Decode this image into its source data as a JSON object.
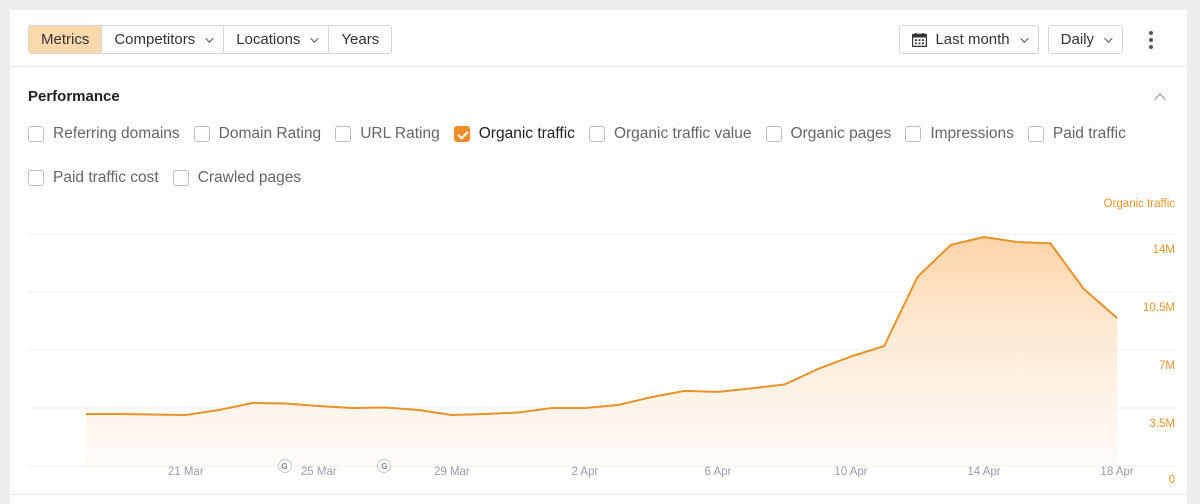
{
  "toolbar": {
    "segments": [
      {
        "label": "Metrics",
        "active": true,
        "has_dropdown": false
      },
      {
        "label": "Competitors",
        "active": false,
        "has_dropdown": true
      },
      {
        "label": "Locations",
        "active": false,
        "has_dropdown": true
      },
      {
        "label": "Years",
        "active": false,
        "has_dropdown": false
      }
    ],
    "period": {
      "icon": "calendar-icon",
      "label": "Last month"
    },
    "granularity": {
      "label": "Daily"
    },
    "more_icon": "more-vertical-icon"
  },
  "section": {
    "title": "Performance",
    "collapse_icon": "chevron-up-icon"
  },
  "metrics": [
    {
      "label": "Referring domains",
      "checked": false
    },
    {
      "label": "Domain Rating",
      "checked": false
    },
    {
      "label": "URL Rating",
      "checked": false
    },
    {
      "label": "Organic traffic",
      "checked": true
    },
    {
      "label": "Organic traffic value",
      "checked": false
    },
    {
      "label": "Organic pages",
      "checked": false
    },
    {
      "label": "Impressions",
      "checked": false
    },
    {
      "label": "Paid traffic",
      "checked": false
    },
    {
      "label": "Paid traffic cost",
      "checked": false
    },
    {
      "label": "Crawled pages",
      "checked": false
    }
  ],
  "colors": {
    "accent": "#f28c28",
    "line": "#e8922a",
    "active_segment": "#fcd9ad",
    "axis_label": "#e8932e"
  },
  "chart_data": {
    "type": "area",
    "title": "",
    "series": [
      {
        "name": "Organic traffic",
        "x": [
          "18 Mar",
          "19 Mar",
          "20 Mar",
          "21 Mar",
          "22 Mar",
          "23 Mar",
          "24 Mar",
          "25 Mar",
          "26 Mar",
          "27 Mar",
          "28 Mar",
          "29 Mar",
          "30 Mar",
          "31 Mar",
          "1 Apr",
          "2 Apr",
          "3 Apr",
          "4 Apr",
          "5 Apr",
          "6 Apr",
          "7 Apr",
          "8 Apr",
          "9 Apr",
          "10 Apr",
          "11 Apr",
          "12 Apr",
          "13 Apr",
          "14 Apr",
          "15 Apr",
          "16 Apr",
          "17 Apr",
          "18 Apr"
        ],
        "values": [
          3140000,
          3140000,
          3110000,
          3080000,
          3380000,
          3800000,
          3770000,
          3620000,
          3500000,
          3530000,
          3380000,
          3080000,
          3140000,
          3230000,
          3500000,
          3500000,
          3680000,
          4160000,
          4530000,
          4470000,
          4680000,
          4920000,
          5850000,
          6610000,
          7240000,
          11410000,
          13340000,
          13820000,
          13520000,
          13430000,
          10680000,
          8930000
        ]
      }
    ],
    "x_tick_labels": [
      "21 Mar",
      "25 Mar",
      "29 Mar",
      "2 Apr",
      "6 Apr",
      "10 Apr",
      "14 Apr",
      "18 Apr"
    ],
    "y_axis": {
      "title": "Organic traffic",
      "position": "right",
      "tick_labels": [
        "14M",
        "10.5M",
        "7M",
        "3.5M",
        "0"
      ],
      "ticks": [
        14000000,
        10500000,
        7000000,
        3500000,
        0
      ],
      "range": [
        0,
        14000000
      ]
    },
    "xlabel": "",
    "ylabel": "Organic traffic",
    "grid": true,
    "annotations": [
      {
        "type": "google-update-marker",
        "label": "G",
        "x": "24 Mar"
      },
      {
        "type": "google-update-marker",
        "label": "G",
        "x": "27 Mar"
      }
    ]
  }
}
